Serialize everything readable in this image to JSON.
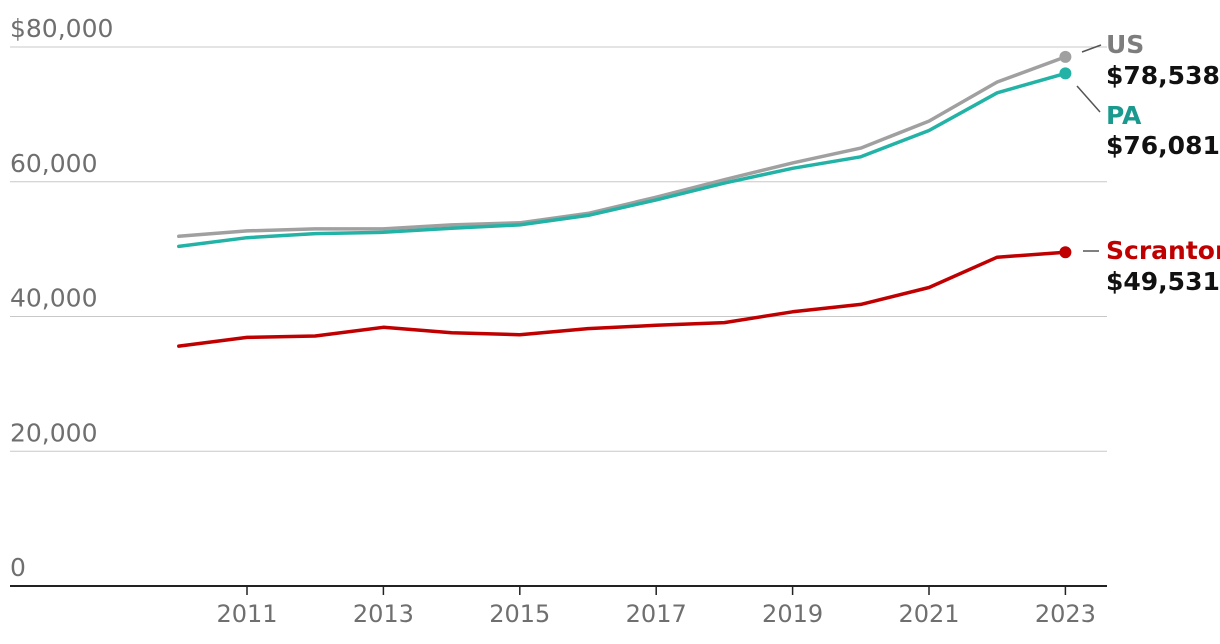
{
  "chart_data": {
    "type": "line",
    "title": "",
    "xlabel": "",
    "ylabel": "",
    "x": [
      2010,
      2011,
      2012,
      2013,
      2014,
      2015,
      2016,
      2017,
      2018,
      2019,
      2020,
      2021,
      2022,
      2023
    ],
    "x_ticks": [
      "2011",
      "2013",
      "2015",
      "2017",
      "2019",
      "2021",
      "2023"
    ],
    "y_ticks": [
      "$80,000",
      "60,000",
      "40,000",
      "20,000",
      "0"
    ],
    "ylim": [
      0,
      80000
    ],
    "grid": true,
    "legend": "direct labels at line ends (right)",
    "series": [
      {
        "name": "US",
        "end_label": "$78,538",
        "color": "#a0a0a0",
        "values": [
          51900,
          52700,
          53000,
          53000,
          53600,
          53900,
          55300,
          57700,
          60300,
          62800,
          65000,
          69000,
          74800,
          78538
        ]
      },
      {
        "name": "PA",
        "end_label": "$76,081",
        "color": "#22b3a6",
        "values": [
          50400,
          51700,
          52300,
          52500,
          53100,
          53600,
          55000,
          57300,
          59800,
          62000,
          63700,
          67600,
          73200,
          76081
        ]
      },
      {
        "name": "Scranton",
        "end_label": "$49,531",
        "color": "#c00000",
        "values": [
          35600,
          36900,
          37100,
          38400,
          37600,
          37300,
          38200,
          38700,
          39100,
          40700,
          41800,
          44300,
          48800,
          49531
        ]
      }
    ]
  }
}
